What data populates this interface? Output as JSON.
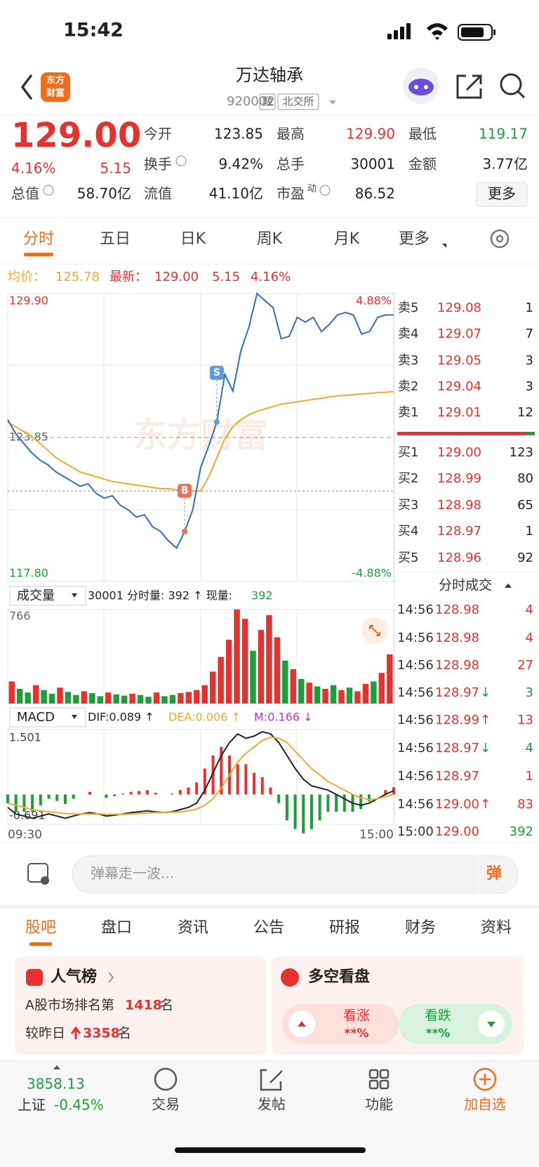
{
  "status": {
    "time": "15:42"
  },
  "header": {
    "logo": [
      "东方",
      "财富"
    ],
    "title": "万达轴承",
    "code": "920002",
    "tags": [
      "融",
      "北交所"
    ]
  },
  "quote": {
    "price": "129.00",
    "change_pct": "4.16%",
    "change": "5.15",
    "fields": [
      {
        "label": "今开",
        "value": "123.85"
      },
      {
        "label": "最高",
        "value": "129.90",
        "color": "#e8312f"
      },
      {
        "label": "最低",
        "value": "119.17",
        "color": "#1e9e3a"
      },
      {
        "label": "换手",
        "value": "9.42%",
        "info": true
      },
      {
        "label": "总手",
        "value": "30001"
      },
      {
        "label": "金额",
        "value": "3.77亿"
      },
      {
        "label": "总值",
        "value": "58.70亿",
        "info": true
      },
      {
        "label": "流值",
        "value": "41.10亿"
      },
      {
        "label": "市盈",
        "sup": "动",
        "value": "86.52",
        "info": true
      }
    ],
    "more": "更多"
  },
  "tabs": {
    "items": [
      "分时",
      "五日",
      "日K",
      "周K",
      "月K",
      "更多"
    ],
    "active": 0
  },
  "summary": {
    "avg_label": "均价：",
    "avg": "125.78",
    "last_label": "最新：",
    "last": "129.00",
    "change": "5.15",
    "change_pct": "4.16%"
  },
  "watermark": "东方财富",
  "chart_data": [
    {
      "type": "line",
      "ylim": [
        117.8,
        129.9
      ],
      "yticks": [
        {
          "value": 117.8,
          "label": "117.80"
        },
        {
          "value": 123.85,
          "label": "123.85"
        },
        {
          "value": 129.9,
          "label": "129.90"
        }
      ],
      "y2lim": [
        -4.88,
        4.88
      ],
      "y2ticks": [
        {
          "value": -4.88,
          "label": "-4.88%"
        },
        {
          "value": 4.88,
          "label": "4.88%"
        }
      ],
      "series": [
        {
          "color": "#2f6fbd",
          "values": [
            124.6,
            124.0,
            123.6,
            123.2,
            122.9,
            122.7,
            122.4,
            122.2,
            122.0,
            121.8,
            121.9,
            121.5,
            121.3,
            121.4,
            121.0,
            120.8,
            120.5,
            120.6,
            120.1,
            119.9,
            119.5,
            119.2,
            119.9,
            120.8,
            122.6,
            123.5,
            124.5,
            126.5,
            125.8,
            127.5,
            128.5,
            129.9,
            129.6,
            129.3,
            128.0,
            128.1,
            128.9,
            128.7,
            128.9,
            128.3,
            128.6,
            129.0,
            129.1,
            129.0,
            128.2,
            128.3,
            128.9,
            129.0,
            129.0
          ]
        },
        {
          "color": "#f3a92b",
          "values": [
            124.5,
            124.3,
            124.1,
            123.9,
            123.6,
            123.3,
            123.0,
            122.8,
            122.6,
            122.4,
            122.3,
            122.2,
            122.1,
            122.0,
            121.95,
            121.9,
            121.85,
            121.8,
            121.75,
            121.7,
            121.7,
            121.65,
            121.6,
            121.6,
            121.6,
            122.2,
            123.0,
            123.8,
            124.3,
            124.6,
            124.8,
            124.95,
            125.05,
            125.15,
            125.25,
            125.3,
            125.35,
            125.4,
            125.45,
            125.5,
            125.55,
            125.6,
            125.62,
            125.65,
            125.68,
            125.7,
            125.73,
            125.75,
            125.78
          ]
        }
      ],
      "reference_line": {
        "value": 121.6,
        "color": "#f26a1b"
      },
      "annotations": [
        {
          "label": "B",
          "index": 22,
          "value": 119.9,
          "color": "#f0705a"
        },
        {
          "label": "S",
          "index": 26,
          "value": 124.5,
          "color": "#5b9be0"
        }
      ]
    },
    {
      "type": "bar",
      "ylim": [
        0,
        766
      ],
      "yticks": [
        766
      ],
      "values": [
        180,
        120,
        90,
        150,
        110,
        80,
        130,
        95,
        70,
        100,
        85,
        60,
        90,
        75,
        65,
        80,
        70,
        55,
        90,
        60,
        70,
        85,
        95,
        110,
        150,
        260,
        380,
        520,
        766,
        690,
        430,
        600,
        720,
        540,
        350,
        280,
        200,
        170,
        140,
        120,
        150,
        110,
        130,
        100,
        160,
        180,
        250,
        400
      ],
      "colors": [
        "#e8312f",
        "#1e9e3a",
        "#1e9e3a",
        "#e8312f",
        "#1e9e3a",
        "#1e9e3a",
        "#e8312f",
        "#1e9e3a",
        "#1e9e3a",
        "#e8312f",
        "#1e9e3a",
        "#1e9e3a",
        "#e8312f",
        "#1e9e3a",
        "#1e9e3a",
        "#e8312f",
        "#1e9e3a",
        "#1e9e3a",
        "#e8312f",
        "#1e9e3a",
        "#1e9e3a",
        "#e8312f",
        "#e8312f",
        "#e8312f",
        "#e8312f",
        "#e8312f",
        "#e8312f",
        "#e8312f",
        "#e8312f",
        "#e8312f",
        "#1e9e3a",
        "#e8312f",
        "#e8312f",
        "#e8312f",
        "#1e9e3a",
        "#e8312f",
        "#1e9e3a",
        "#e8312f",
        "#1e9e3a",
        "#e8312f",
        "#1e9e3a",
        "#e8312f",
        "#1e9e3a",
        "#e8312f",
        "#e8312f",
        "#1e9e3a",
        "#e8312f",
        "#e8312f"
      ]
    },
    {
      "type": "macd",
      "ylim": [
        -0.691,
        1.501
      ],
      "yticks": [
        -0.691,
        1.501
      ],
      "xticks": [
        "09:30",
        "15:00"
      ],
      "series": [
        {
          "color": "#222222",
          "values": [
            -0.3,
            -0.45,
            -0.5,
            -0.55,
            -0.5,
            -0.45,
            -0.5,
            -0.55,
            -0.5,
            -0.45,
            -0.42,
            -0.45,
            -0.5,
            -0.48,
            -0.45,
            -0.42,
            -0.4,
            -0.38,
            -0.4,
            -0.42,
            -0.4,
            -0.35,
            -0.3,
            -0.2,
            0.1,
            0.5,
            0.9,
            1.2,
            1.4,
            1.3,
            1.35,
            1.45,
            1.4,
            1.2,
            0.9,
            0.6,
            0.35,
            0.2,
            0.15,
            0.1,
            0.0,
            -0.1,
            -0.2,
            -0.25,
            -0.2,
            -0.1,
            0.0,
            0.089
          ]
        },
        {
          "color": "#f3a92b",
          "values": [
            -0.2,
            -0.25,
            -0.3,
            -0.35,
            -0.38,
            -0.4,
            -0.42,
            -0.44,
            -0.45,
            -0.45,
            -0.45,
            -0.45,
            -0.46,
            -0.46,
            -0.46,
            -0.45,
            -0.44,
            -0.43,
            -0.42,
            -0.42,
            -0.41,
            -0.4,
            -0.38,
            -0.34,
            -0.25,
            -0.1,
            0.15,
            0.45,
            0.75,
            0.95,
            1.1,
            1.25,
            1.32,
            1.3,
            1.2,
            1.0,
            0.8,
            0.6,
            0.45,
            0.3,
            0.2,
            0.1,
            0.0,
            -0.08,
            -0.12,
            -0.1,
            -0.05,
            0.006
          ]
        }
      ],
      "histogram": {
        "up_color": "#e8312f",
        "down_color": "#1e9e3a",
        "values": [
          -0.2,
          -0.4,
          -0.4,
          -0.4,
          -0.25,
          -0.1,
          -0.15,
          -0.22,
          -0.1,
          0.0,
          0.06,
          0.0,
          -0.08,
          -0.04,
          0.02,
          0.06,
          0.08,
          0.1,
          0.04,
          0.0,
          0.02,
          0.1,
          0.16,
          0.28,
          0.6,
          0.9,
          1.1,
          0.9,
          0.7,
          0.7,
          0.5,
          0.4,
          0.16,
          -0.2,
          -0.6,
          -0.8,
          -0.9,
          -0.8,
          -0.6,
          -0.4,
          -0.4,
          -0.4,
          -0.4,
          -0.34,
          -0.16,
          0.0,
          0.1,
          0.166
        ]
      }
    }
  ],
  "volume_header": {
    "selector": "成交量",
    "text": "30001 分时量: 392 ↑ 现量:",
    "current": "392"
  },
  "macd_header": {
    "selector": "MACD",
    "dif": "DIF:0.089 ↑",
    "dea": "DEA:0.006 ↑",
    "m": "M:0.166 ↓"
  },
  "order_book": {
    "asks": [
      {
        "label": "卖5",
        "price": "129.08",
        "volume": "1"
      },
      {
        "label": "卖4",
        "price": "129.07",
        "volume": "7"
      },
      {
        "label": "卖3",
        "price": "129.05",
        "volume": "3"
      },
      {
        "label": "卖2",
        "price": "129.04",
        "volume": "3"
      },
      {
        "label": "卖1",
        "price": "129.01",
        "volume": "12"
      }
    ],
    "bids": [
      {
        "label": "买1",
        "price": "129.00",
        "volume": "123"
      },
      {
        "label": "买2",
        "price": "128.99",
        "volume": "80"
      },
      {
        "label": "买3",
        "price": "128.98",
        "volume": "65"
      },
      {
        "label": "买4",
        "price": "128.97",
        "volume": "1"
      },
      {
        "label": "买5",
        "price": "128.96",
        "volume": "92"
      }
    ]
  },
  "trades": {
    "title": "分时成交",
    "rows": [
      {
        "time": "14:56",
        "price": "128.98",
        "volume": "4",
        "color": "#e8312f"
      },
      {
        "time": "14:56",
        "price": "128.98",
        "volume": "4",
        "color": "#e8312f"
      },
      {
        "time": "14:56",
        "price": "128.98",
        "volume": "27",
        "color": "#e8312f"
      },
      {
        "time": "14:56",
        "price": "128.97",
        "dir": "↓",
        "volume": "3",
        "color": "#1e9e3a"
      },
      {
        "time": "14:56",
        "price": "128.99",
        "dir": "↑",
        "volume": "13",
        "color": "#e8312f"
      },
      {
        "time": "14:56",
        "price": "128.97",
        "dir": "↓",
        "volume": "4",
        "color": "#1e9e3a"
      },
      {
        "time": "14:56",
        "price": "128.97",
        "volume": "1",
        "color": "#e8312f"
      },
      {
        "time": "14:56",
        "price": "129.00",
        "dir": "↑",
        "volume": "83",
        "color": "#e8312f"
      },
      {
        "time": "15:00",
        "price": "129.00",
        "volume": "392",
        "color": "#1e9e3a"
      }
    ]
  },
  "barrage": {
    "placeholder": "弹幕走一波...",
    "button": "弹"
  },
  "sections": {
    "tabs": [
      "股吧",
      "盘口",
      "资讯",
      "公告",
      "研报",
      "财务",
      "资料"
    ],
    "active": 0
  },
  "popularity": {
    "title": "人气榜",
    "rank_prefix": "A股市场排名第",
    "rank": "1418",
    "rank_suffix": "名",
    "change_prefix": "较昨日",
    "change": "3358",
    "change_suffix": "名"
  },
  "sentiment": {
    "title": "多空看盘",
    "bull": "看涨",
    "bull_value": "**%",
    "bear": "看跌",
    "bear_value": "**%"
  },
  "nav": {
    "index_value": "3858.13",
    "index_name": "上证",
    "index_change": "-0.45%",
    "items": [
      "交易",
      "发帖",
      "功能",
      "加自选"
    ]
  }
}
